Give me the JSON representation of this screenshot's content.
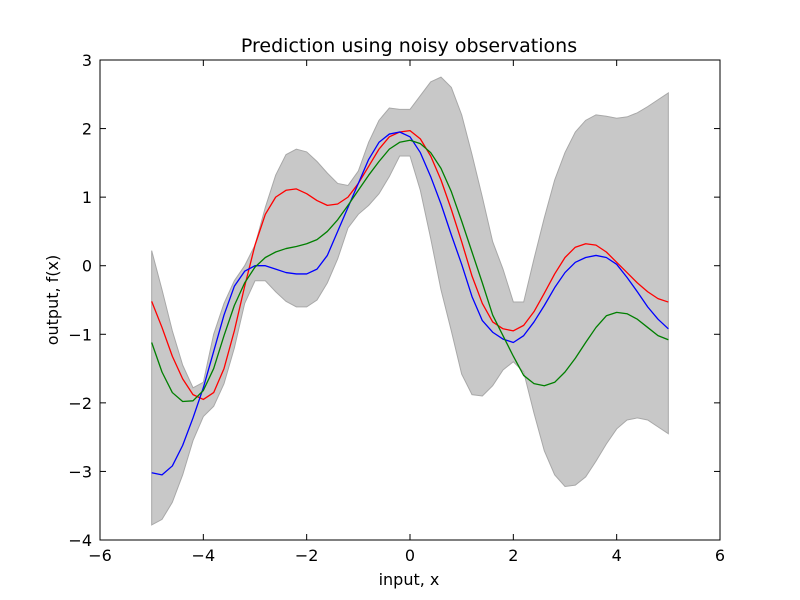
{
  "chart_data": {
    "type": "line",
    "title": "Prediction using noisy observations",
    "xlabel": "input, x",
    "ylabel": "output, f(x)",
    "xlim": [
      -6,
      6
    ],
    "ylim": [
      -4,
      3
    ],
    "xticks": [
      -6,
      -4,
      -2,
      0,
      2,
      4,
      6
    ],
    "yticks": [
      -4,
      -3,
      -2,
      -1,
      0,
      1,
      2,
      3
    ],
    "grid": false,
    "band": {
      "color": "#c8c8c8",
      "edge_color": "#a8a8a8",
      "x": [
        -5.0,
        -4.8,
        -4.6,
        -4.4,
        -4.2,
        -4.0,
        -3.8,
        -3.6,
        -3.4,
        -3.2,
        -3.0,
        -2.8,
        -2.6,
        -2.4,
        -2.2,
        -2.0,
        -1.8,
        -1.6,
        -1.4,
        -1.2,
        -1.0,
        -0.8,
        -0.6,
        -0.4,
        -0.2,
        0.0,
        0.2,
        0.4,
        0.6,
        0.8,
        1.0,
        1.2,
        1.4,
        1.6,
        1.8,
        2.0,
        2.2,
        2.4,
        2.6,
        2.8,
        3.0,
        3.2,
        3.4,
        3.6,
        3.8,
        4.0,
        4.2,
        4.4,
        4.6,
        4.8,
        5.0
      ],
      "upper": [
        0.22,
        -0.35,
        -0.95,
        -1.45,
        -1.78,
        -1.7,
        -1.0,
        -0.55,
        -0.22,
        0.0,
        0.3,
        0.85,
        1.32,
        1.62,
        1.7,
        1.66,
        1.52,
        1.35,
        1.2,
        1.17,
        1.38,
        1.8,
        2.12,
        2.3,
        2.28,
        2.28,
        2.48,
        2.68,
        2.75,
        2.6,
        2.2,
        1.62,
        1.0,
        0.35,
        -0.05,
        -0.53,
        -0.53,
        0.1,
        0.7,
        1.25,
        1.65,
        1.95,
        2.12,
        2.2,
        2.18,
        2.15,
        2.17,
        2.23,
        2.32,
        2.42,
        2.52
      ],
      "lower": [
        -3.78,
        -3.7,
        -3.45,
        -3.05,
        -2.55,
        -2.2,
        -2.05,
        -1.72,
        -1.2,
        -0.55,
        -0.22,
        -0.22,
        -0.38,
        -0.52,
        -0.6,
        -0.6,
        -0.5,
        -0.25,
        0.1,
        0.55,
        0.75,
        0.88,
        1.05,
        1.3,
        1.6,
        1.6,
        1.1,
        0.4,
        -0.35,
        -0.95,
        -1.58,
        -1.88,
        -1.9,
        -1.75,
        -1.52,
        -1.4,
        -1.55,
        -2.15,
        -2.7,
        -3.05,
        -3.22,
        -3.2,
        -3.08,
        -2.85,
        -2.6,
        -2.38,
        -2.25,
        -2.22,
        -2.25,
        -2.35,
        -2.45
      ]
    },
    "series": [
      {
        "color": "#ff0000",
        "x": [
          -5.0,
          -4.8,
          -4.6,
          -4.4,
          -4.2,
          -4.0,
          -3.8,
          -3.6,
          -3.4,
          -3.2,
          -3.0,
          -2.8,
          -2.6,
          -2.4,
          -2.2,
          -2.0,
          -1.8,
          -1.6,
          -1.4,
          -1.2,
          -1.0,
          -0.8,
          -0.6,
          -0.4,
          -0.2,
          0.0,
          0.2,
          0.4,
          0.6,
          0.8,
          1.0,
          1.2,
          1.4,
          1.6,
          1.8,
          2.0,
          2.2,
          2.4,
          2.6,
          2.8,
          3.0,
          3.2,
          3.4,
          3.6,
          3.8,
          4.0,
          4.2,
          4.4,
          4.6,
          4.8,
          5.0
        ],
        "y": [
          -0.52,
          -0.9,
          -1.32,
          -1.65,
          -1.88,
          -1.95,
          -1.85,
          -1.5,
          -0.95,
          -0.3,
          0.3,
          0.75,
          1.0,
          1.1,
          1.12,
          1.05,
          0.95,
          0.88,
          0.9,
          1.0,
          1.2,
          1.45,
          1.7,
          1.88,
          1.95,
          1.97,
          1.85,
          1.6,
          1.25,
          0.82,
          0.35,
          -0.15,
          -0.55,
          -0.82,
          -0.92,
          -0.95,
          -0.87,
          -0.67,
          -0.4,
          -0.12,
          0.12,
          0.27,
          0.32,
          0.3,
          0.2,
          0.05,
          -0.1,
          -0.25,
          -0.38,
          -0.48,
          -0.53
        ]
      },
      {
        "color": "#0000ff",
        "x": [
          -5.0,
          -4.8,
          -4.6,
          -4.4,
          -4.2,
          -4.0,
          -3.8,
          -3.6,
          -3.4,
          -3.2,
          -3.0,
          -2.8,
          -2.6,
          -2.4,
          -2.2,
          -2.0,
          -1.8,
          -1.6,
          -1.4,
          -1.2,
          -1.0,
          -0.8,
          -0.6,
          -0.4,
          -0.2,
          0.0,
          0.2,
          0.4,
          0.6,
          0.8,
          1.0,
          1.2,
          1.4,
          1.6,
          1.8,
          2.0,
          2.2,
          2.4,
          2.6,
          2.8,
          3.0,
          3.2,
          3.4,
          3.6,
          3.8,
          4.0,
          4.2,
          4.4,
          4.6,
          4.8,
          5.0
        ],
        "y": [
          -3.02,
          -3.05,
          -2.92,
          -2.62,
          -2.22,
          -1.78,
          -1.25,
          -0.72,
          -0.3,
          -0.08,
          0.0,
          0.0,
          -0.05,
          -0.1,
          -0.12,
          -0.12,
          -0.05,
          0.15,
          0.5,
          0.85,
          1.2,
          1.55,
          1.8,
          1.92,
          1.95,
          1.88,
          1.65,
          1.3,
          0.9,
          0.45,
          0.02,
          -0.45,
          -0.8,
          -0.97,
          -1.07,
          -1.12,
          -1.02,
          -0.82,
          -0.58,
          -0.32,
          -0.1,
          0.05,
          0.12,
          0.15,
          0.12,
          0.02,
          -0.17,
          -0.38,
          -0.6,
          -0.78,
          -0.92
        ]
      },
      {
        "color": "#007f00",
        "x": [
          -5.0,
          -4.8,
          -4.6,
          -4.4,
          -4.2,
          -4.0,
          -3.8,
          -3.6,
          -3.4,
          -3.2,
          -3.0,
          -2.8,
          -2.6,
          -2.4,
          -2.2,
          -2.0,
          -1.8,
          -1.6,
          -1.4,
          -1.2,
          -1.0,
          -0.8,
          -0.6,
          -0.4,
          -0.2,
          0.0,
          0.2,
          0.4,
          0.6,
          0.8,
          1.0,
          1.2,
          1.4,
          1.6,
          1.8,
          2.0,
          2.2,
          2.4,
          2.6,
          2.8,
          3.0,
          3.2,
          3.4,
          3.6,
          3.8,
          4.0,
          4.2,
          4.4,
          4.6,
          4.8,
          5.0
        ],
        "y": [
          -1.12,
          -1.55,
          -1.85,
          -1.98,
          -1.97,
          -1.82,
          -1.5,
          -1.02,
          -0.58,
          -0.25,
          -0.02,
          0.12,
          0.2,
          0.25,
          0.28,
          0.32,
          0.38,
          0.5,
          0.67,
          0.88,
          1.1,
          1.32,
          1.52,
          1.7,
          1.8,
          1.83,
          1.78,
          1.65,
          1.42,
          1.08,
          0.65,
          0.2,
          -0.25,
          -0.72,
          -1.02,
          -1.32,
          -1.6,
          -1.72,
          -1.75,
          -1.7,
          -1.55,
          -1.35,
          -1.12,
          -0.9,
          -0.73,
          -0.68,
          -0.7,
          -0.78,
          -0.9,
          -1.02,
          -1.08
        ]
      }
    ]
  }
}
